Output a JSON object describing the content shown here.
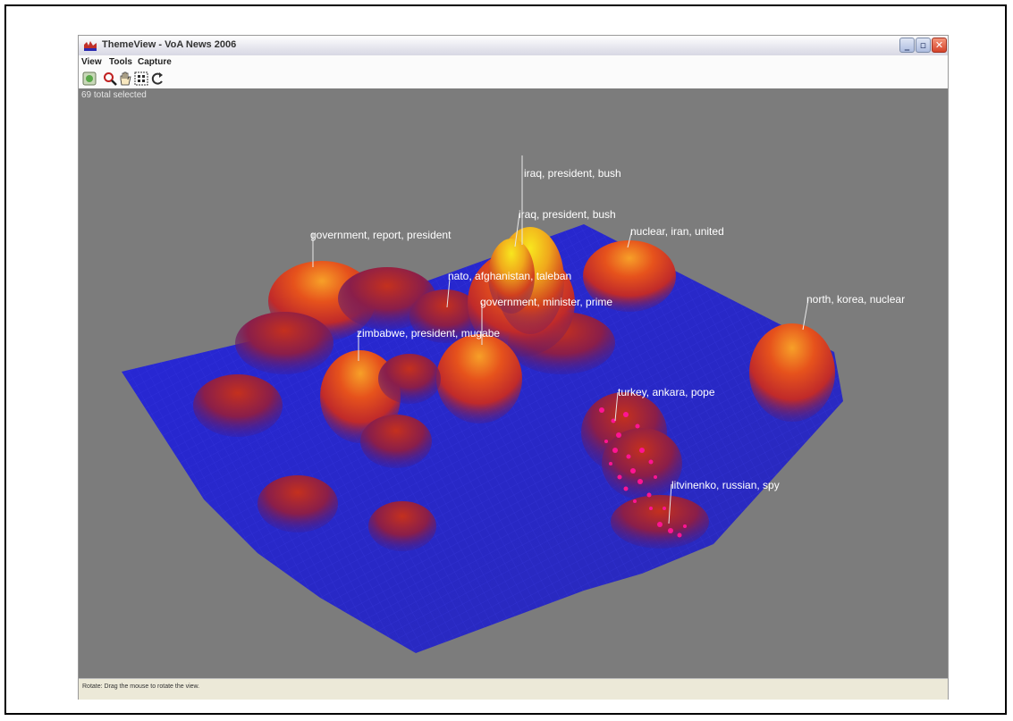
{
  "window": {
    "title": "ThemeView - VoA News 2006",
    "controls": [
      "minimize",
      "maximize",
      "close"
    ]
  },
  "menubar": {
    "items": [
      "View",
      "Tools",
      "Capture"
    ]
  },
  "toolbar": {
    "buttons": [
      {
        "icon": "home-icon"
      },
      {
        "icon": "magnifier-icon"
      },
      {
        "icon": "hand-icon"
      },
      {
        "icon": "select-grid-icon"
      },
      {
        "icon": "rotate-icon"
      }
    ]
  },
  "canvas": {
    "selection_status": "69 total selected",
    "background_color": "#7c7c7c",
    "terrain_color": "#2a2acc",
    "peak_colors": [
      "#7a1a5c",
      "#d4301c",
      "#f07a1c",
      "#f6d21a"
    ],
    "highlight_color": "#ff1493",
    "topics": [
      "iraq, president, bush",
      "iraq, president, bush",
      "nuclear, iran, united",
      "government, report, president",
      "nato, afghanistan, taleban",
      "government, minister, prime",
      "north, korea, nuclear",
      "zimbabwe, president, mugabe",
      "turkey, ankara, pope",
      "litvinenko, russian, spy"
    ]
  },
  "statusbar": {
    "text": "Rotate: Drag the mouse to rotate the view."
  }
}
